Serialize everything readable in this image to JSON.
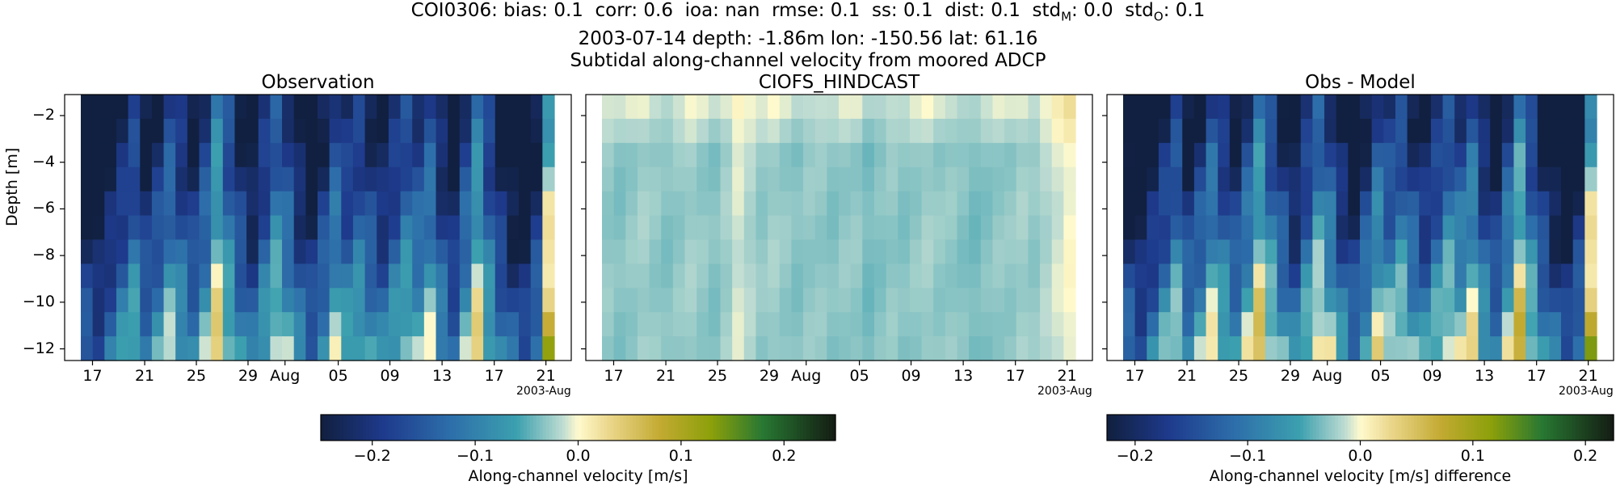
{
  "title": {
    "metrics": [
      {
        "label": "COI0306: bias:",
        "value": "0.1"
      },
      {
        "label": "corr:",
        "value": "0.6"
      },
      {
        "label": "ioa:",
        "value": "nan"
      },
      {
        "label": "rmse:",
        "value": "0.1"
      },
      {
        "label": "ss:",
        "value": "0.1"
      },
      {
        "label": "dist:",
        "value": "0.1"
      }
    ],
    "std_m_label": "std",
    "std_m_sub": "M",
    "std_m_value": "0.0",
    "std_o_label": "std",
    "std_o_sub": "O",
    "std_o_value": "0.1",
    "line2": "2003-07-14 depth: -1.86m lon: -150.56 lat: 61.16",
    "line3": "Subtidal along-channel velocity from moored ADCP"
  },
  "chart_data": [
    {
      "type": "heatmap",
      "title": "Observation",
      "ylabel": "Depth [m]",
      "x_ticks": [
        "17",
        "21",
        "25",
        "29",
        "Aug",
        "05",
        "09",
        "13",
        "17",
        "21"
      ],
      "x_offset_label": "2003-Aug",
      "x_range": [
        "2003-07-14",
        "2003-08-22"
      ],
      "y_ticks": [
        -2,
        -4,
        -6,
        -8,
        -10,
        -12
      ],
      "y_range": [
        -12.5,
        -1.1
      ],
      "depths": [
        -1.86,
        -2.86,
        -3.86,
        -4.86,
        -5.86,
        -6.86,
        -7.86,
        -8.86,
        -9.86,
        -10.86,
        -11.86
      ],
      "colormap": "delta",
      "clim": [
        -0.25,
        0.25
      ],
      "time_profile": [
        -0.22,
        -0.24,
        -0.2,
        -0.16,
        -0.12,
        -0.18,
        -0.15,
        -0.1,
        -0.14,
        -0.17,
        -0.12,
        -0.03,
        -0.1,
        -0.16,
        -0.2,
        -0.14,
        -0.08,
        -0.12,
        -0.18,
        -0.21,
        -0.16,
        -0.1,
        -0.14,
        -0.12,
        -0.15,
        -0.18,
        -0.14,
        -0.1,
        -0.12,
        -0.09,
        -0.16,
        -0.2,
        -0.12,
        -0.04,
        -0.12,
        -0.18,
        -0.22,
        -0.24,
        -0.18,
        0.02
      ],
      "depth_profile": [
        -0.08,
        -0.07,
        -0.06,
        -0.05,
        -0.03,
        -0.02,
        0.0,
        0.02,
        0.04,
        0.06,
        0.08
      ]
    },
    {
      "type": "heatmap",
      "title": "CIOFS_HINDCAST",
      "x_ticks": [
        "17",
        "21",
        "25",
        "29",
        "Aug",
        "05",
        "09",
        "13",
        "17",
        "21"
      ],
      "x_offset_label": "2003-Aug",
      "x_range": [
        "2003-07-14",
        "2003-08-22"
      ],
      "y_ticks": [
        -2,
        -4,
        -6,
        -8,
        -10,
        -12
      ],
      "y_range": [
        -12.5,
        -1.1
      ],
      "depths": [
        -1.86,
        -2.86,
        -3.86,
        -4.86,
        -5.86,
        -6.86,
        -7.86,
        -8.86,
        -9.86,
        -10.86,
        -11.86
      ],
      "colormap": "delta",
      "clim": [
        -0.25,
        0.25
      ],
      "time_profile": [
        -0.03,
        -0.035,
        -0.03,
        -0.025,
        -0.03,
        -0.035,
        -0.03,
        -0.025,
        -0.03,
        -0.035,
        -0.025,
        -0.01,
        -0.02,
        -0.03,
        -0.025,
        -0.03,
        -0.035,
        -0.03,
        -0.03,
        -0.035,
        -0.03,
        -0.03,
        -0.04,
        -0.035,
        -0.03,
        -0.035,
        -0.03,
        -0.025,
        -0.03,
        -0.03,
        -0.035,
        -0.04,
        -0.035,
        -0.03,
        -0.03,
        -0.025,
        -0.03,
        -0.02,
        -0.01,
        0.0
      ],
      "depth_profile": [
        0.02,
        0.01,
        0.0,
        0.0,
        0.0,
        0.0,
        0.0,
        0.0,
        0.0,
        0.0,
        0.0
      ]
    },
    {
      "type": "heatmap",
      "title": "Obs - Model",
      "x_ticks": [
        "17",
        "21",
        "25",
        "29",
        "Aug",
        "05",
        "09",
        "13",
        "17",
        "21"
      ],
      "x_offset_label": "2003-Aug",
      "x_range": [
        "2003-07-14",
        "2003-08-22"
      ],
      "y_ticks": [
        -2,
        -4,
        -6,
        -8,
        -10,
        -12
      ],
      "y_range": [
        -12.5,
        -1.1
      ],
      "depths": [
        -1.86,
        -2.86,
        -3.86,
        -4.86,
        -5.86,
        -6.86,
        -7.86,
        -8.86,
        -9.86,
        -10.86,
        -11.86
      ],
      "colormap": "delta",
      "clim": [
        -0.225,
        0.225
      ],
      "time_profile": [
        -0.19,
        -0.21,
        -0.17,
        -0.13,
        -0.09,
        -0.15,
        -0.12,
        -0.07,
        -0.11,
        -0.14,
        -0.09,
        -0.02,
        -0.08,
        -0.13,
        -0.17,
        -0.11,
        -0.05,
        -0.09,
        -0.15,
        -0.18,
        -0.13,
        -0.07,
        -0.1,
        -0.08,
        -0.12,
        -0.15,
        -0.11,
        -0.07,
        -0.09,
        -0.06,
        -0.13,
        -0.16,
        -0.09,
        -0.01,
        -0.09,
        -0.15,
        -0.19,
        -0.22,
        -0.17,
        0.02
      ],
      "depth_profile": [
        -0.09,
        -0.08,
        -0.06,
        -0.05,
        -0.03,
        -0.02,
        0.0,
        0.02,
        0.04,
        0.06,
        0.08
      ]
    }
  ],
  "colorbars": [
    {
      "label": "Along-channel velocity [m/s]",
      "ticks": [
        "−0.2",
        "−0.1",
        "0.0",
        "0.1",
        "0.2"
      ],
      "tick_values": [
        -0.2,
        -0.1,
        0.0,
        0.1,
        0.2
      ],
      "range": [
        -0.25,
        0.25
      ]
    },
    {
      "label": "Along-channel velocity [m/s] difference",
      "ticks": [
        "−0.2",
        "−0.1",
        "0.0",
        "0.1",
        "0.2"
      ],
      "tick_values": [
        -0.2,
        -0.1,
        0.0,
        0.1,
        0.2
      ],
      "range": [
        -0.225,
        0.225
      ]
    }
  ]
}
